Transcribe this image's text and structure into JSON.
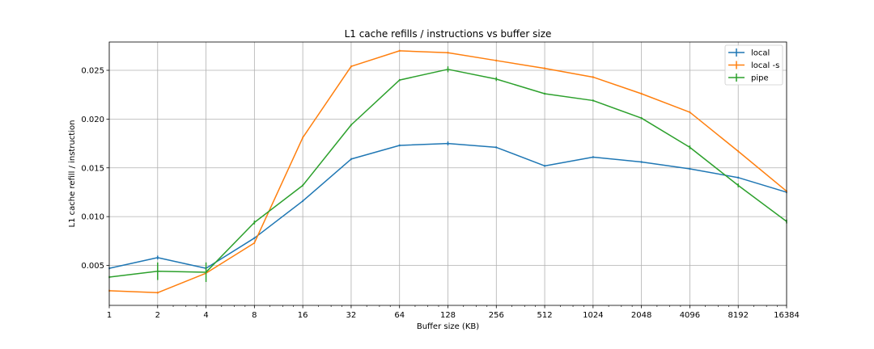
{
  "chart_data": {
    "type": "line",
    "title": "L1 cache refills / instructions vs buffer size",
    "xlabel": "Buffer size (KB)",
    "ylabel": "L1 cache refill / instruction",
    "x_scale": "log2",
    "x": [
      1,
      2,
      4,
      8,
      16,
      32,
      64,
      128,
      256,
      512,
      1024,
      2048,
      4096,
      8192,
      16384
    ],
    "xtick_labels": [
      "1",
      "2",
      "4",
      "8",
      "16",
      "32",
      "64",
      "128",
      "256",
      "512",
      "1024",
      "2048",
      "4096",
      "8192",
      "16384"
    ],
    "ylim": [
      0.0009,
      0.0279
    ],
    "yticks": [
      0.005,
      0.01,
      0.015,
      0.02,
      0.025
    ],
    "ytick_labels": [
      "0.005",
      "0.010",
      "0.015",
      "0.020",
      "0.025"
    ],
    "grid": true,
    "legend_position": "top-right",
    "series": [
      {
        "name": "local",
        "color": "#1f77b4",
        "values": [
          0.0047,
          0.0058,
          0.0047,
          0.0078,
          0.0116,
          0.0159,
          0.0173,
          0.0175,
          0.0171,
          0.0152,
          0.0161,
          0.0156,
          0.0149,
          0.014,
          0.0125
        ],
        "errors": [
          0.0001,
          0.0002,
          0.0002,
          0.0001,
          0.0001,
          0.0001,
          0.0001,
          0.0002,
          0.0001,
          0.0001,
          0.0001,
          0.0001,
          0.0001,
          0.0001,
          0.0001
        ]
      },
      {
        "name": "local -s",
        "color": "#ff7f0e",
        "values": [
          0.0024,
          0.0022,
          0.0042,
          0.0073,
          0.0181,
          0.0254,
          0.027,
          0.0268,
          0.026,
          0.0252,
          0.0243,
          0.0226,
          0.0207,
          0.0167,
          0.0126
        ],
        "errors": [
          0.0001,
          0.0001,
          0.0001,
          0.0001,
          0.0001,
          0.0001,
          0.0001,
          0.0001,
          0.0001,
          0.0001,
          0.0001,
          0.0001,
          0.0001,
          0.0001,
          0.0001
        ]
      },
      {
        "name": "pipe",
        "color": "#2ca02c",
        "values": [
          0.0038,
          0.0044,
          0.0043,
          0.0094,
          0.0132,
          0.0194,
          0.024,
          0.0251,
          0.0241,
          0.0226,
          0.0219,
          0.0201,
          0.0171,
          0.0132,
          0.0095
        ],
        "errors": [
          0.0001,
          0.0009,
          0.001,
          0.0002,
          0.0001,
          0.0001,
          0.0001,
          0.0003,
          0.0002,
          0.0001,
          0.0001,
          0.0001,
          0.0002,
          0.0002,
          0.0002
        ]
      }
    ]
  }
}
